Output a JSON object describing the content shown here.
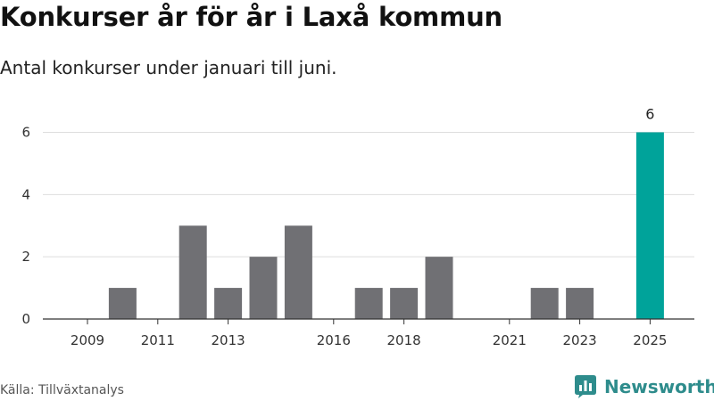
{
  "chart_data": {
    "type": "bar",
    "title": "Konkurser år för år i Laxå kommun",
    "subtitle": "Antal konkurser under januari till juni.",
    "x": [
      2009,
      2010,
      2011,
      2012,
      2013,
      2014,
      2015,
      2016,
      2017,
      2018,
      2019,
      2020,
      2021,
      2022,
      2023,
      2024,
      2025
    ],
    "values": [
      0,
      1,
      0,
      3,
      1,
      2,
      3,
      0,
      1,
      1,
      2,
      0,
      0,
      1,
      1,
      0,
      6
    ],
    "x_tick_labels": [
      "2009",
      "2011",
      "2013",
      "2016",
      "2018",
      "2021",
      "2023",
      "2025"
    ],
    "y_ticks": [
      0,
      2,
      4,
      6
    ],
    "ylim": [
      0,
      6.3
    ],
    "grid": true,
    "highlight": {
      "x": 2025,
      "label": "6"
    },
    "xlabel": "",
    "ylabel": ""
  },
  "colors": {
    "bar": "#707074",
    "highlight": "#00a39a",
    "grid": "#dddddd",
    "axis": "#333333",
    "brand": "#2e8c8c"
  },
  "footer": {
    "source": "Källa: Tillväxtanalys",
    "brand_name": "Newsworthy",
    "brand_icon": "bar-chart-speech-bubble-icon"
  }
}
